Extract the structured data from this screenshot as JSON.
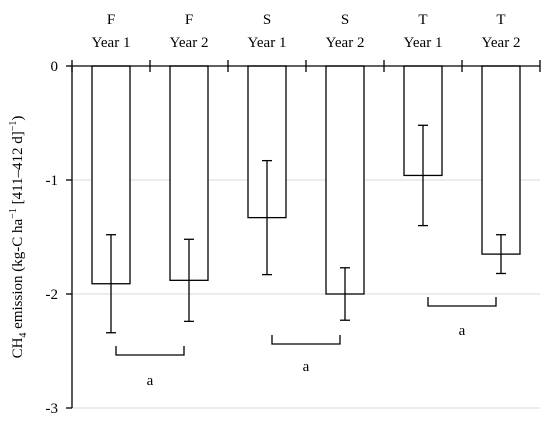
{
  "chart_data": {
    "type": "bar",
    "categories": [
      [
        "F",
        "Year 1"
      ],
      [
        "F",
        "Year 2"
      ],
      [
        "S",
        "Year 1"
      ],
      [
        "S",
        "Year 2"
      ],
      [
        "T",
        "Year 1"
      ],
      [
        "T",
        "Year 2"
      ]
    ],
    "values": [
      -1.91,
      -1.88,
      -1.33,
      -2.0,
      -0.96,
      -1.65
    ],
    "error": [
      0.43,
      0.36,
      0.5,
      0.23,
      0.44,
      0.17
    ],
    "ylabel": {
      "main": "CH",
      "sub": "4",
      "text1": " emission (kg-C ha",
      "sup1": "−1",
      "text2": " [411–412 d]",
      "sup2": "−1",
      "text3": ")"
    },
    "ylim": [
      -3,
      0
    ],
    "yticks": [
      "0",
      "-1",
      "-2",
      "-3"
    ],
    "grid": true,
    "significance": [
      {
        "pair": [
          0,
          1
        ],
        "label": "a"
      },
      {
        "pair": [
          2,
          3
        ],
        "label": "a"
      },
      {
        "pair": [
          4,
          5
        ],
        "label": "a"
      }
    ],
    "colors": {
      "bar_fill": "#ffffff",
      "bar_stroke": "#000000",
      "grid": "#d9d9d9",
      "axis": "#000000"
    }
  }
}
